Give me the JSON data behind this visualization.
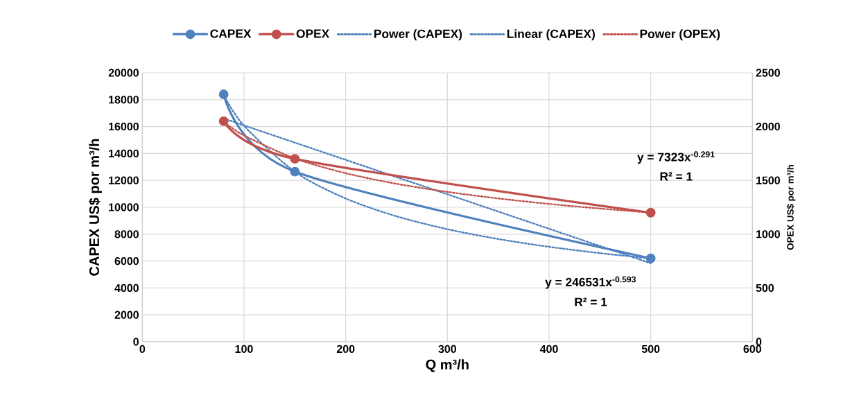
{
  "chart_data": {
    "type": "line",
    "xlabel": "Q m³/h",
    "ylabel": "CAPEX US$  por m³/h",
    "y2label": "OPEX  US$ por m³/h",
    "xlim": [
      0,
      600
    ],
    "xticks": [
      0,
      100,
      200,
      300,
      400,
      500,
      600
    ],
    "ylim": [
      0,
      20000
    ],
    "yticks": [
      0,
      2000,
      4000,
      6000,
      8000,
      10000,
      12000,
      14000,
      16000,
      18000,
      20000
    ],
    "y2lim": [
      0,
      2500
    ],
    "y2ticks": [
      0,
      500,
      1000,
      1500,
      2000,
      2500
    ],
    "grid": true,
    "legend": "top",
    "series": [
      {
        "name": "CAPEX",
        "color": "#4f81bd",
        "marker": "circle",
        "line_style": "solid",
        "x": [
          80,
          150,
          500
        ],
        "values": [
          18400,
          12650,
          6200
        ]
      },
      {
        "name": "OPEX",
        "color": "#c0504d",
        "marker": "circle",
        "line_style": "solid",
        "axis": "y2",
        "x": [
          80,
          150,
          500
        ],
        "values": [
          2050,
          1700,
          1200
        ]
      },
      {
        "name": "Power (CAPEX)",
        "color": "#4f81bd",
        "marker": "none",
        "line_style": "dotted",
        "x": [
          80,
          100,
          150,
          200,
          250,
          300,
          350,
          400,
          450,
          500
        ],
        "values": [
          18340,
          16060,
          12640,
          10650,
          9330,
          8370,
          7640,
          7060,
          6590,
          6190
        ]
      },
      {
        "name": "Linear (CAPEX)",
        "color": "#4f81bd",
        "marker": "none",
        "line_style": "dotted",
        "x": [
          80,
          500
        ],
        "values": [
          16600,
          5840
        ]
      },
      {
        "name": "Power (OPEX)",
        "color": "#c0504d",
        "marker": "none",
        "line_style": "dotted",
        "axis": "y2",
        "x": [
          80,
          100,
          150,
          200,
          250,
          300,
          350,
          400,
          450,
          500
        ],
        "values": [
          2046,
          1917,
          1704,
          1567,
          1468,
          1393,
          1332,
          1281,
          1238,
          1200
        ]
      }
    ],
    "annotations": [
      "y = 7323x$^{-0.291}$",
      "R² = 1",
      "y = 246531x$^{-0.593}$",
      "R² = 1"
    ]
  }
}
